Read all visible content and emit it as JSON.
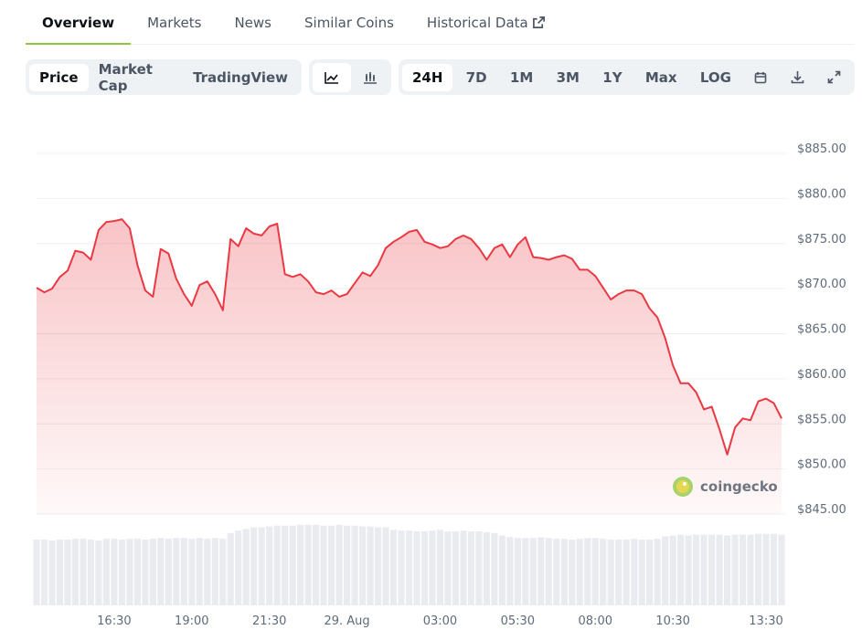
{
  "tabs": [
    "Overview",
    "Markets",
    "News",
    "Similar Coins",
    "Historical Data"
  ],
  "toolbar": {
    "metric": [
      "Price",
      "Market Cap",
      "TradingView"
    ],
    "ranges": [
      "24H",
      "7D",
      "1M",
      "3M",
      "1Y",
      "Max",
      "LOG"
    ]
  },
  "watermark": "coingecko",
  "chart_data": {
    "type": "line",
    "color": "#ea3943",
    "categories": [
      null,
      null,
      null,
      null,
      null,
      null,
      null,
      null,
      null,
      null,
      "16:30",
      null,
      null,
      null,
      null,
      null,
      null,
      null,
      null,
      null,
      "19:00",
      null,
      null,
      null,
      null,
      null,
      null,
      null,
      null,
      null,
      "21:30",
      null,
      null,
      null,
      null,
      null,
      null,
      null,
      null,
      null,
      "29. Aug",
      null,
      null,
      null,
      null,
      null,
      null,
      null,
      null,
      null,
      null,
      null,
      "03:00",
      null,
      null,
      null,
      null,
      null,
      null,
      null,
      null,
      null,
      "05:30",
      null,
      null,
      null,
      null,
      null,
      null,
      null,
      null,
      null,
      "08:00",
      null,
      null,
      null,
      null,
      null,
      null,
      null,
      null,
      null,
      "10:30",
      null,
      null,
      null,
      null,
      null,
      null,
      null,
      null,
      null,
      null,
      null,
      "13:30",
      null,
      null
    ],
    "values": [
      870.1,
      869.6,
      870.0,
      871.3,
      872.0,
      874.2,
      874.0,
      873.2,
      876.5,
      877.4,
      877.5,
      877.7,
      876.7,
      872.6,
      869.8,
      869.1,
      874.4,
      873.9,
      871.1,
      869.4,
      868.1,
      870.4,
      870.8,
      869.4,
      867.6,
      875.5,
      874.7,
      876.7,
      876.1,
      875.9,
      876.9,
      877.2,
      871.6,
      871.3,
      871.6,
      870.8,
      869.6,
      869.4,
      869.8,
      869.1,
      869.4,
      870.6,
      871.8,
      871.4,
      872.6,
      874.5,
      875.2,
      875.7,
      876.3,
      876.5,
      875.2,
      874.9,
      874.5,
      874.7,
      875.5,
      875.9,
      875.5,
      874.5,
      873.2,
      874.5,
      874.9,
      873.5,
      874.9,
      875.7,
      873.5,
      873.4,
      873.2,
      873.5,
      873.7,
      873.3,
      872.1,
      872.1,
      871.4,
      870.1,
      868.8,
      869.4,
      869.8,
      869.8,
      869.4,
      867.8,
      866.8,
      864.5,
      861.5,
      859.5,
      859.5,
      858.5,
      856.6,
      856.9,
      854.4,
      851.6,
      854.6,
      855.6,
      855.4,
      857.5,
      857.8,
      857.3,
      855.6
    ],
    "ylim": [
      845,
      889.5
    ],
    "yticks": [
      {
        "value": 845,
        "label": "$845.00"
      },
      {
        "value": 850,
        "label": "$850.00"
      },
      {
        "value": 855,
        "label": "$855.00"
      },
      {
        "value": 860,
        "label": "$860.00"
      },
      {
        "value": 865,
        "label": "$865.00"
      },
      {
        "value": 870,
        "label": "$870.00"
      },
      {
        "value": 875,
        "label": "$875.00"
      },
      {
        "value": 880,
        "label": "$880.00"
      },
      {
        "value": 885,
        "label": "$885.00"
      }
    ],
    "grid": true,
    "volume": {
      "color": "#e9ebee",
      "ylim": [
        0,
        100
      ],
      "values": [
        80,
        80,
        79,
        80,
        80,
        81,
        81,
        80,
        79,
        81,
        81,
        80,
        81,
        81,
        80,
        81,
        82,
        81,
        82,
        82,
        81,
        82,
        81,
        82,
        81,
        88,
        91,
        93,
        95,
        95,
        96,
        97,
        97,
        97,
        98,
        98,
        98,
        97,
        97,
        98,
        97,
        97,
        96,
        96,
        95,
        95,
        92,
        91,
        91,
        90,
        90,
        91,
        92,
        90,
        90,
        91,
        90,
        90,
        89,
        88,
        85,
        83,
        82,
        82,
        82,
        83,
        82,
        81,
        81,
        80,
        81,
        82,
        82,
        81,
        80,
        80,
        80,
        81,
        80,
        80,
        81,
        84,
        85,
        86,
        85,
        86,
        86,
        86,
        86,
        85,
        86,
        86,
        86,
        87,
        87,
        87,
        86
      ]
    }
  }
}
